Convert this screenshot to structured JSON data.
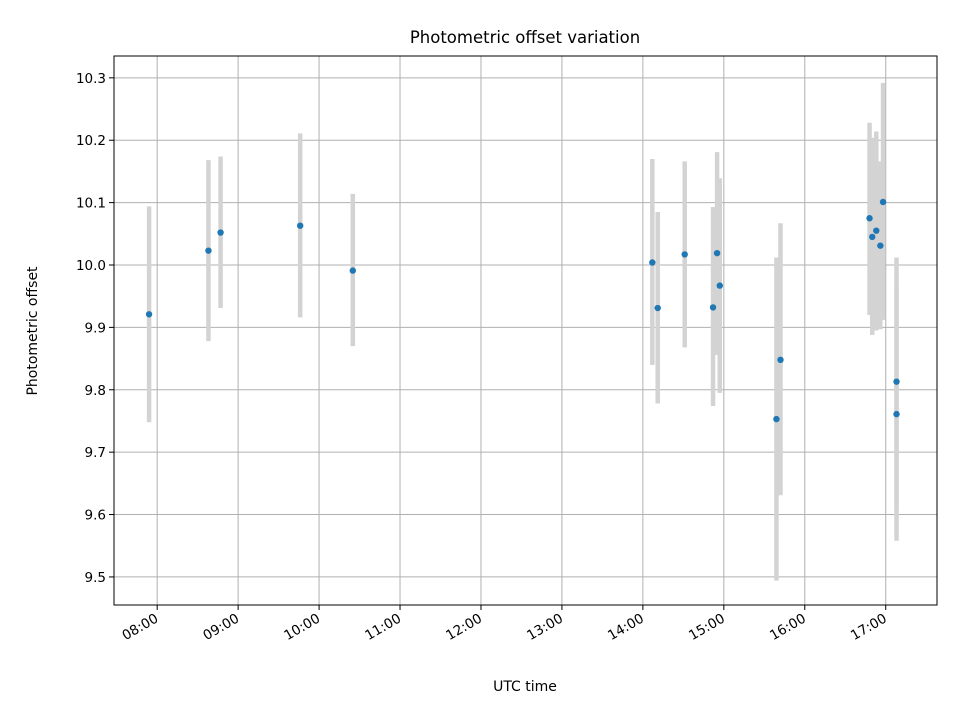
{
  "chart_data": {
    "type": "scatter",
    "title": "Photometric offset variation",
    "xlabel": "UTC time",
    "ylabel": "Photometric offset",
    "xlim": [
      "07:28",
      "17:38"
    ],
    "ylim": [
      9.455,
      10.335
    ],
    "x_ticks": [
      "08:00",
      "09:00",
      "10:00",
      "11:00",
      "12:00",
      "13:00",
      "14:00",
      "15:00",
      "16:00",
      "17:00"
    ],
    "y_ticks": [
      "9.5",
      "9.6",
      "9.7",
      "9.8",
      "9.9",
      "10.0",
      "10.1",
      "10.2",
      "10.3"
    ],
    "grid": true,
    "colors": {
      "marker": "#1f77b4",
      "errorbar": "#d3d3d3",
      "grid": "#b0b0b0"
    },
    "series": [
      {
        "points": [
          {
            "time": "07:54",
            "y": 9.921,
            "ylow": 9.748,
            "yhigh": 10.094
          },
          {
            "time": "08:38",
            "y": 10.023,
            "ylow": 9.878,
            "yhigh": 10.168
          },
          {
            "time": "08:47",
            "y": 10.052,
            "ylow": 9.931,
            "yhigh": 10.174
          },
          {
            "time": "09:46",
            "y": 10.063,
            "ylow": 9.916,
            "yhigh": 10.211
          },
          {
            "time": "10:25",
            "y": 9.991,
            "ylow": 9.87,
            "yhigh": 10.114
          },
          {
            "time": "14:07",
            "y": 10.004,
            "ylow": 9.84,
            "yhigh": 10.17
          },
          {
            "time": "14:11",
            "y": 9.931,
            "ylow": 9.778,
            "yhigh": 10.085
          },
          {
            "time": "14:31",
            "y": 10.017,
            "ylow": 9.868,
            "yhigh": 10.166
          },
          {
            "time": "14:52",
            "y": 9.932,
            "ylow": 9.774,
            "yhigh": 10.093
          },
          {
            "time": "14:55",
            "y": 10.019,
            "ylow": 9.856,
            "yhigh": 10.181
          },
          {
            "time": "14:57",
            "y": 9.967,
            "ylow": 9.795,
            "yhigh": 10.139
          },
          {
            "time": "15:39",
            "y": 9.753,
            "ylow": 9.494,
            "yhigh": 10.012
          },
          {
            "time": "15:42",
            "y": 9.848,
            "ylow": 9.631,
            "yhigh": 10.067
          },
          {
            "time": "16:48",
            "y": 10.075,
            "ylow": 9.92,
            "yhigh": 10.228
          },
          {
            "time": "16:50",
            "y": 10.045,
            "ylow": 9.888,
            "yhigh": 10.204
          },
          {
            "time": "16:53",
            "y": 10.055,
            "ylow": 9.895,
            "yhigh": 10.214
          },
          {
            "time": "16:56",
            "y": 10.031,
            "ylow": 9.897,
            "yhigh": 10.166
          },
          {
            "time": "16:58",
            "y": 10.101,
            "ylow": 9.912,
            "yhigh": 10.292
          },
          {
            "time": "17:08",
            "y": 9.813,
            "ylow": 9.613,
            "yhigh": 10.012
          },
          {
            "time": "17:08",
            "y": 9.761,
            "ylow": 9.558,
            "yhigh": 9.964
          }
        ]
      }
    ]
  }
}
